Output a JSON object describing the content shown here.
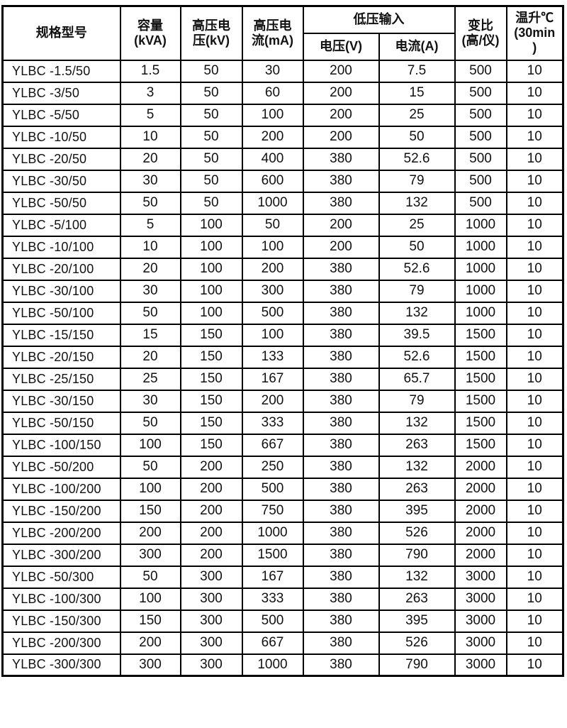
{
  "table": {
    "header": {
      "model": "规格型号",
      "capacity": "容量\n(kVA)",
      "hv_voltage": "高压电\n压(kV)",
      "hv_current": "高压电\n流(mA)",
      "lv_input_group": "低压输入",
      "lv_voltage": "电压(V)",
      "lv_current": "电流(A)",
      "ratio": "变比\n(高/仪)",
      "temp_rise": "温升℃\n(30min\n)"
    },
    "rows": [
      [
        "YLBC -1.5/50",
        "1.5",
        "50",
        "30",
        "200",
        "7.5",
        "500",
        "10"
      ],
      [
        "YLBC -3/50",
        "3",
        "50",
        "60",
        "200",
        "15",
        "500",
        "10"
      ],
      [
        "YLBC -5/50",
        "5",
        "50",
        "100",
        "200",
        "25",
        "500",
        "10"
      ],
      [
        "YLBC -10/50",
        "10",
        "50",
        "200",
        "200",
        "50",
        "500",
        "10"
      ],
      [
        "YLBC -20/50",
        "20",
        "50",
        "400",
        "380",
        "52.6",
        "500",
        "10"
      ],
      [
        "YLBC -30/50",
        "30",
        "50",
        "600",
        "380",
        "79",
        "500",
        "10"
      ],
      [
        "YLBC -50/50",
        "50",
        "50",
        "1000",
        "380",
        "132",
        "500",
        "10"
      ],
      [
        "YLBC -5/100",
        "5",
        "100",
        "50",
        "200",
        "25",
        "1000",
        "10"
      ],
      [
        "YLBC -10/100",
        "10",
        "100",
        "100",
        "200",
        "50",
        "1000",
        "10"
      ],
      [
        "YLBC -20/100",
        "20",
        "100",
        "200",
        "380",
        "52.6",
        "1000",
        "10"
      ],
      [
        "YLBC -30/100",
        "30",
        "100",
        "300",
        "380",
        "79",
        "1000",
        "10"
      ],
      [
        "YLBC -50/100",
        "50",
        "100",
        "500",
        "380",
        "132",
        "1000",
        "10"
      ],
      [
        "YLBC -15/150",
        "15",
        "150",
        "100",
        "380",
        "39.5",
        "1500",
        "10"
      ],
      [
        "YLBC -20/150",
        "20",
        "150",
        "133",
        "380",
        "52.6",
        "1500",
        "10"
      ],
      [
        "YLBC -25/150",
        "25",
        "150",
        "167",
        "380",
        "65.7",
        "1500",
        "10"
      ],
      [
        "YLBC -30/150",
        "30",
        "150",
        "200",
        "380",
        "79",
        "1500",
        "10"
      ],
      [
        "YLBC -50/150",
        "50",
        "150",
        "333",
        "380",
        "132",
        "1500",
        "10"
      ],
      [
        "YLBC -100/150",
        "100",
        "150",
        "667",
        "380",
        "263",
        "1500",
        "10"
      ],
      [
        "YLBC -50/200",
        "50",
        "200",
        "250",
        "380",
        "132",
        "2000",
        "10"
      ],
      [
        "YLBC -100/200",
        "100",
        "200",
        "500",
        "380",
        "263",
        "2000",
        "10"
      ],
      [
        "YLBC -150/200",
        "150",
        "200",
        "750",
        "380",
        "395",
        "2000",
        "10"
      ],
      [
        "YLBC -200/200",
        "200",
        "200",
        "1000",
        "380",
        "526",
        "2000",
        "10"
      ],
      [
        "YLBC -300/200",
        "300",
        "200",
        "1500",
        "380",
        "790",
        "2000",
        "10"
      ],
      [
        "YLBC -50/300",
        "50",
        "300",
        "167",
        "380",
        "132",
        "3000",
        "10"
      ],
      [
        "YLBC -100/300",
        "100",
        "300",
        "333",
        "380",
        "263",
        "3000",
        "10"
      ],
      [
        "YLBC -150/300",
        "150",
        "300",
        "500",
        "380",
        "395",
        "3000",
        "10"
      ],
      [
        "YLBC -200/300",
        "200",
        "300",
        "667",
        "380",
        "526",
        "3000",
        "10"
      ],
      [
        "YLBC -300/300",
        "300",
        "300",
        "1000",
        "380",
        "790",
        "3000",
        "10"
      ]
    ]
  }
}
